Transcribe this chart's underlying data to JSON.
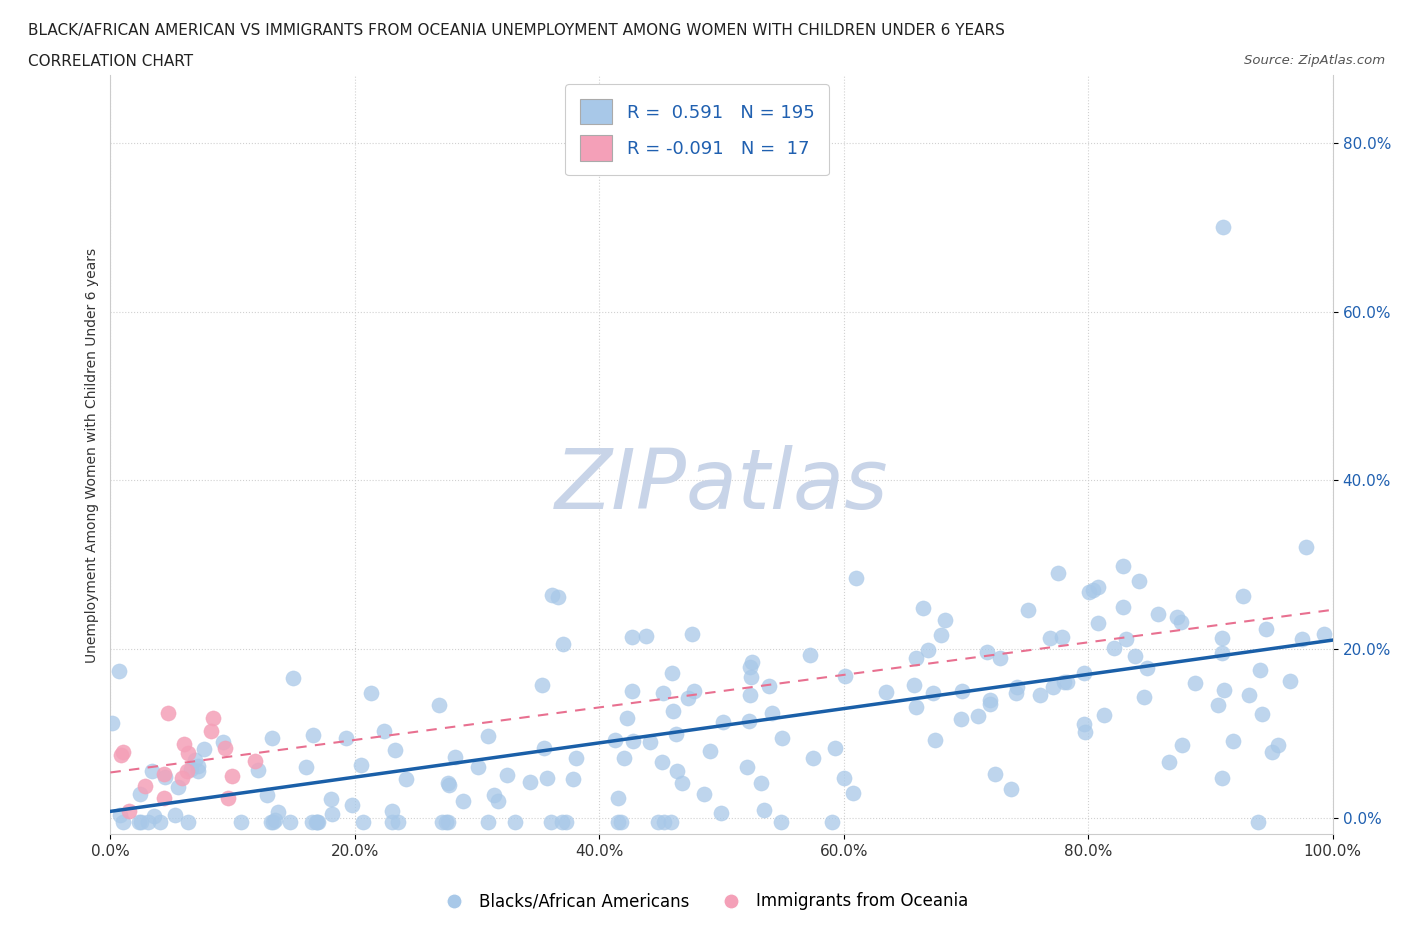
{
  "title_line1": "BLACK/AFRICAN AMERICAN VS IMMIGRANTS FROM OCEANIA UNEMPLOYMENT AMONG WOMEN WITH CHILDREN UNDER 6 YEARS",
  "title_line2": "CORRELATION CHART",
  "source_text": "Source: ZipAtlas.com",
  "ylabel": "Unemployment Among Women with Children Under 6 years",
  "watermark": "ZIPatlas",
  "blue_R": 0.591,
  "blue_N": 195,
  "pink_R": -0.091,
  "pink_N": 17,
  "blue_color": "#a8c8e8",
  "pink_color": "#f4a0b8",
  "blue_line_color": "#1a5fa8",
  "pink_line_color": "#e87090",
  "xlim": [
    0.0,
    1.0
  ],
  "ylim": [
    -0.02,
    0.88
  ],
  "xticks": [
    0.0,
    0.2,
    0.4,
    0.6,
    0.8,
    1.0
  ],
  "yticks": [
    0.0,
    0.2,
    0.4,
    0.6,
    0.8
  ],
  "background_color": "#ffffff",
  "grid_color": "#cccccc",
  "legend_text_color": "#2060b0",
  "title_fontsize": 11,
  "subtitle_fontsize": 11,
  "axis_label_fontsize": 10,
  "tick_fontsize": 11,
  "watermark_fontsize": 60,
  "watermark_color": "#c8d4e8",
  "watermark_alpha": 0.45,
  "blue_label": "Blacks/African Americans",
  "pink_label": "Immigrants from Oceania"
}
